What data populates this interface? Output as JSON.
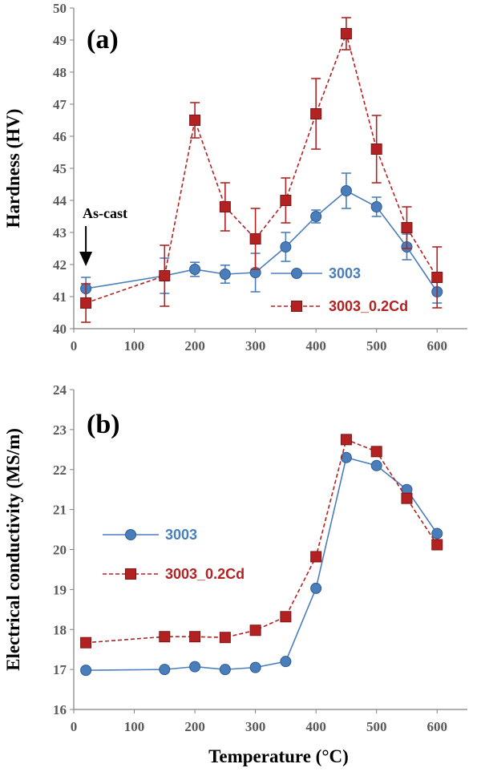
{
  "colors": {
    "s3003": "#4a7ebb",
    "s3003_cd": "#b22222",
    "axis": "#808080",
    "text": "#000000"
  },
  "chart_data": [
    {
      "type": "line",
      "panel_label": "(a)",
      "ylabel": "Hardness (HV)",
      "xlabel": "",
      "xlim": [
        0,
        650
      ],
      "ylim": [
        40,
        50
      ],
      "xticks": [
        "0",
        "100",
        "200",
        "300",
        "400",
        "500",
        "600"
      ],
      "yticks": [
        "40",
        "41",
        "42",
        "43",
        "44",
        "45",
        "46",
        "47",
        "48",
        "49",
        "50"
      ],
      "grid": false,
      "legend": "center-right",
      "annotation": "As-cast",
      "series": [
        {
          "name": "3003",
          "marker": "circle",
          "dash": false,
          "x": [
            20,
            150,
            200,
            250,
            300,
            350,
            400,
            450,
            500,
            550,
            600
          ],
          "y": [
            41.25,
            41.65,
            41.85,
            41.7,
            41.75,
            42.55,
            43.5,
            44.3,
            43.8,
            42.55,
            41.15
          ],
          "err": [
            0.35,
            0.55,
            0.22,
            0.28,
            0.6,
            0.45,
            0.2,
            0.55,
            0.3,
            0.4,
            0.35
          ]
        },
        {
          "name": "3003_0.2Cd",
          "marker": "square",
          "dash": true,
          "x": [
            20,
            150,
            200,
            250,
            300,
            350,
            400,
            450,
            500,
            550,
            600
          ],
          "y": [
            40.8,
            41.65,
            46.5,
            43.8,
            42.8,
            44.0,
            46.7,
            49.2,
            45.6,
            43.15,
            41.6
          ],
          "err": [
            0.6,
            0.95,
            0.55,
            0.75,
            0.95,
            0.7,
            1.1,
            0.5,
            1.05,
            0.65,
            0.95
          ]
        }
      ]
    },
    {
      "type": "line",
      "panel_label": "(b)",
      "ylabel": "Electrical conductivity (MS/m)",
      "xlabel": "Temperature (°C)",
      "xlim": [
        0,
        650
      ],
      "ylim": [
        16,
        24
      ],
      "xticks": [
        "0",
        "100",
        "200",
        "300",
        "400",
        "500",
        "600"
      ],
      "yticks": [
        "16",
        "17",
        "18",
        "19",
        "20",
        "21",
        "22",
        "23",
        "24"
      ],
      "grid": false,
      "legend": "center-left",
      "series": [
        {
          "name": "3003",
          "marker": "circle",
          "dash": false,
          "x": [
            20,
            150,
            200,
            250,
            300,
            350,
            400,
            450,
            500,
            550,
            600
          ],
          "y": [
            16.98,
            17.0,
            17.07,
            17.0,
            17.05,
            17.2,
            19.03,
            22.3,
            22.1,
            21.5,
            20.4
          ]
        },
        {
          "name": "3003_0.2Cd",
          "marker": "square",
          "dash": true,
          "x": [
            20,
            150,
            200,
            250,
            300,
            350,
            400,
            450,
            500,
            550,
            600
          ],
          "y": [
            17.67,
            17.82,
            17.82,
            17.8,
            17.98,
            18.32,
            19.82,
            22.75,
            22.45,
            21.28,
            20.12
          ]
        }
      ]
    }
  ]
}
